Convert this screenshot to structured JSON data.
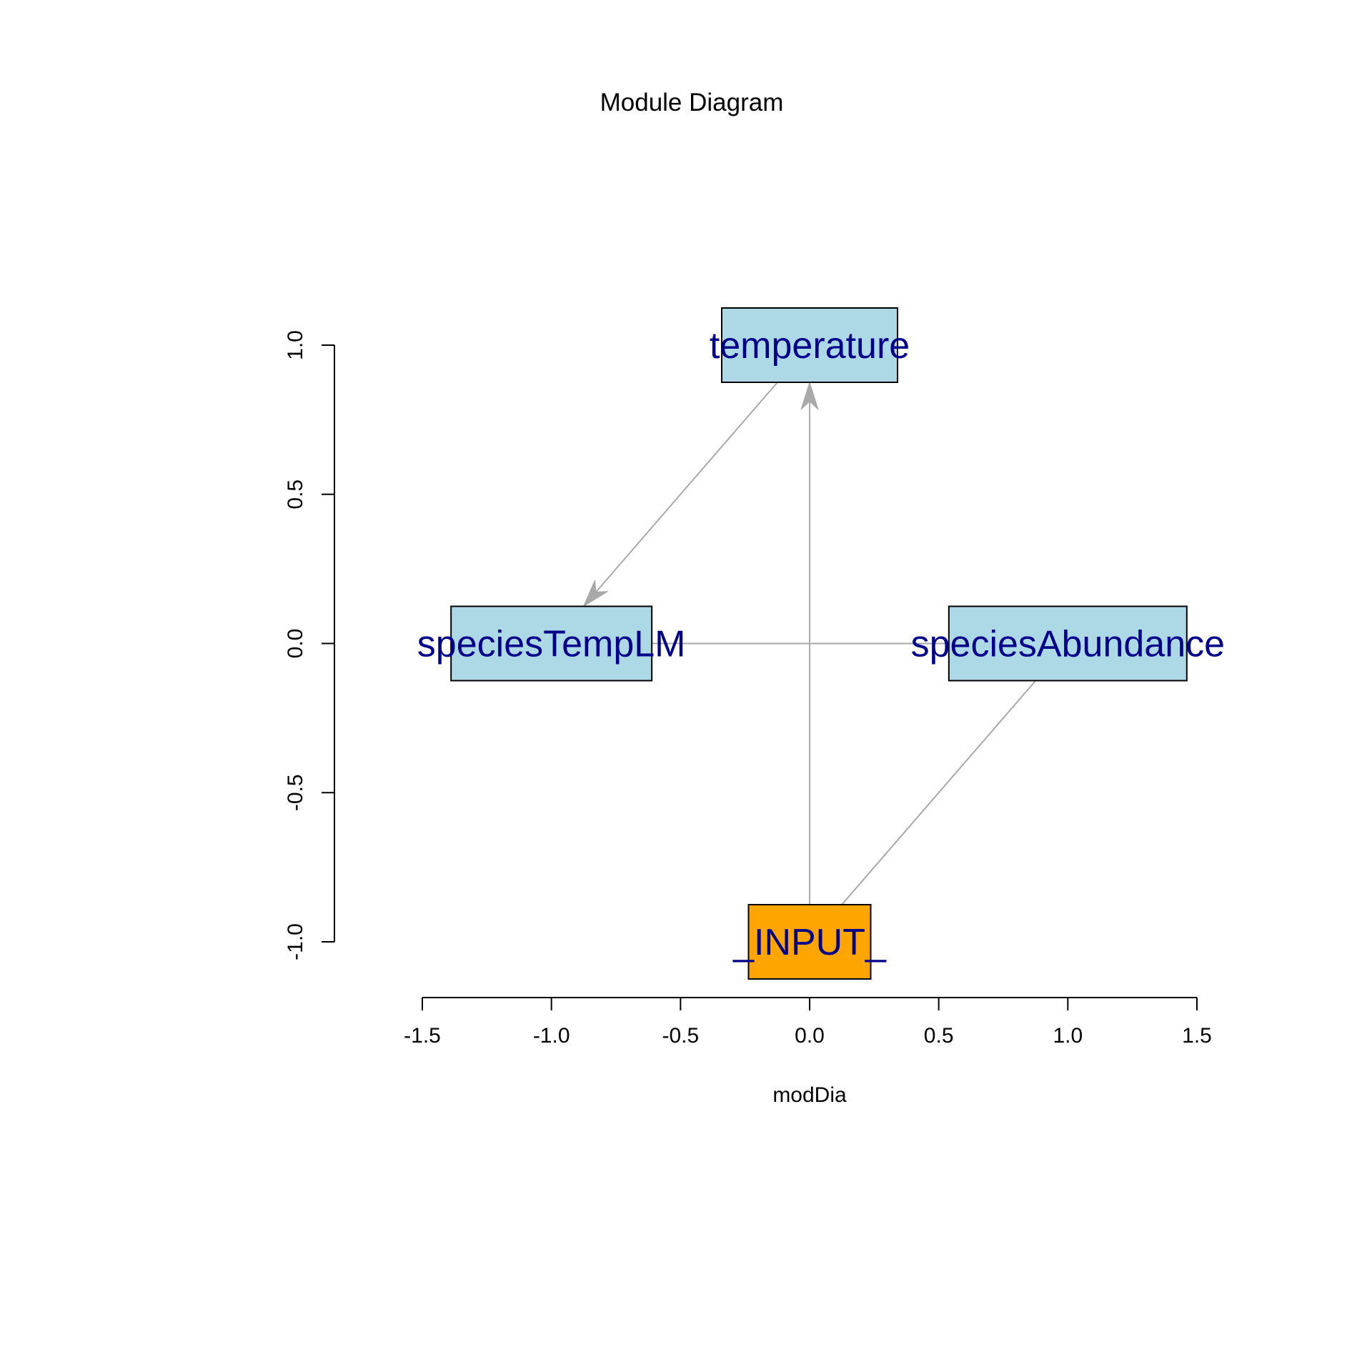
{
  "title": "Module Diagram",
  "chart_data": {
    "type": "diagram",
    "title": "Module Diagram",
    "xlabel": "modDia",
    "ylabel": "",
    "xlim": [
      -1.5,
      1.5
    ],
    "ylim": [
      -1.0,
      1.0
    ],
    "x_ticks": [
      "-1.5",
      "-1.0",
      "-0.5",
      "0.0",
      "0.5",
      "1.0",
      "1.5"
    ],
    "y_ticks": [
      "-1.0",
      "-0.5",
      "0.0",
      "0.5",
      "1.0"
    ],
    "nodes": [
      {
        "id": "temperature",
        "label": "temperature",
        "x": 0.0,
        "y": 1.0,
        "fill": "#ADD8E6"
      },
      {
        "id": "speciesTempLM",
        "label": "speciesTempLM",
        "x": -1.0,
        "y": 0.0,
        "fill": "#ADD8E6"
      },
      {
        "id": "speciesAbundance",
        "label": "speciesAbundance",
        "x": 1.0,
        "y": 0.0,
        "fill": "#ADD8E6"
      },
      {
        "id": "_INPUT_",
        "label": "_INPUT_",
        "x": 0.0,
        "y": -1.0,
        "fill": "#FFA500"
      }
    ],
    "edges": [
      {
        "from": "temperature",
        "to": "speciesTempLM",
        "arrow": true
      },
      {
        "from": "_INPUT_",
        "to": "temperature",
        "arrow": true
      },
      {
        "from": "_INPUT_",
        "to": "speciesAbundance",
        "arrow": false
      },
      {
        "from": "speciesTempLM",
        "to": "speciesAbundance",
        "arrow": false
      }
    ],
    "colors": {
      "node_fill": "#ADD8E6",
      "input_fill": "#FFA500",
      "label_text": "#00008B",
      "edge": "#A9A9A9"
    }
  }
}
